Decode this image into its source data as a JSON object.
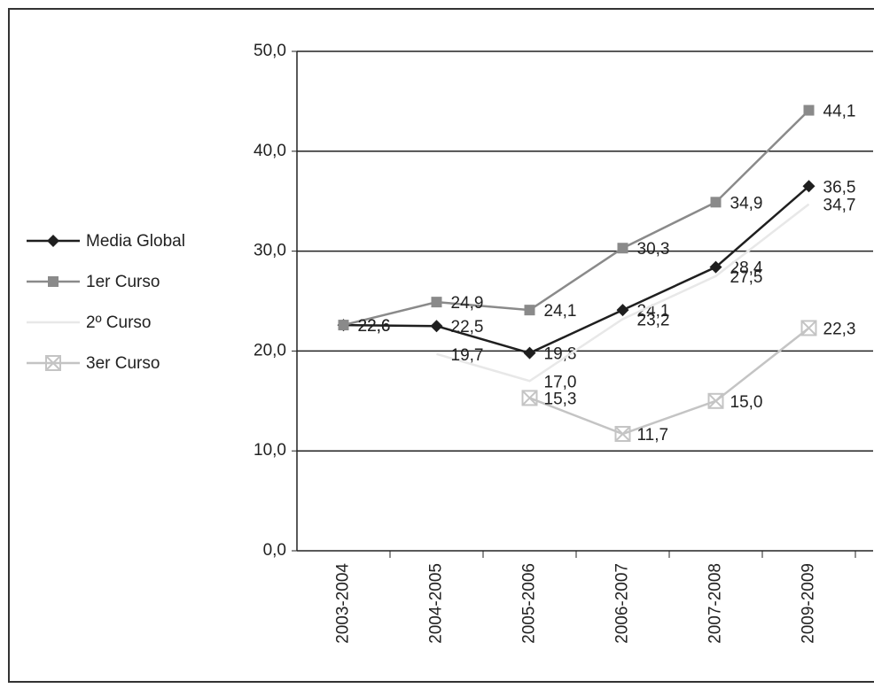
{
  "chart_data": {
    "type": "line",
    "categories": [
      "2003-2004",
      "2004-2005",
      "2005-2006",
      "2006-2007",
      "2007-2008",
      "2009-2009"
    ],
    "series": [
      {
        "name": "Media Global",
        "color": "#1f1f1f",
        "marker": "diamond",
        "values": [
          22.6,
          22.5,
          19.8,
          24.1,
          28.4,
          36.5
        ],
        "value_labels": [
          "22,6",
          "22,5",
          "19,8",
          "24,1",
          "28,4",
          "36,5"
        ]
      },
      {
        "name": "1er Curso",
        "color": "#8a8a8a",
        "marker": "square",
        "values": [
          22.6,
          24.9,
          24.1,
          30.3,
          34.9,
          44.1
        ],
        "value_labels": [
          "22,6",
          "24,9",
          "24,1",
          "30,3",
          "34,9",
          "44,1"
        ]
      },
      {
        "name": "2º Curso",
        "color": "#e8e8e8",
        "marker": "none",
        "values": [
          null,
          19.7,
          17.0,
          23.2,
          27.5,
          34.7
        ],
        "value_labels": [
          null,
          "19,7",
          "17,0",
          "23,2",
          "27,5",
          "34,7"
        ]
      },
      {
        "name": "3er Curso",
        "color": "#c4c4c4",
        "marker": "xsquare",
        "values": [
          null,
          null,
          15.3,
          11.7,
          15.0,
          22.3
        ],
        "value_labels": [
          null,
          null,
          "15,3",
          "11,7",
          "15,0",
          "22,3"
        ]
      }
    ],
    "ylim": [
      0,
      50
    ],
    "yticks": [
      {
        "value": 0,
        "label": "0,0"
      },
      {
        "value": 10,
        "label": "10,0"
      },
      {
        "value": 20,
        "label": "20,0"
      },
      {
        "value": 30,
        "label": "30,0"
      },
      {
        "value": 40,
        "label": "40,0"
      },
      {
        "value": 50,
        "label": "50,0"
      }
    ],
    "grid": true,
    "legend": "left"
  }
}
